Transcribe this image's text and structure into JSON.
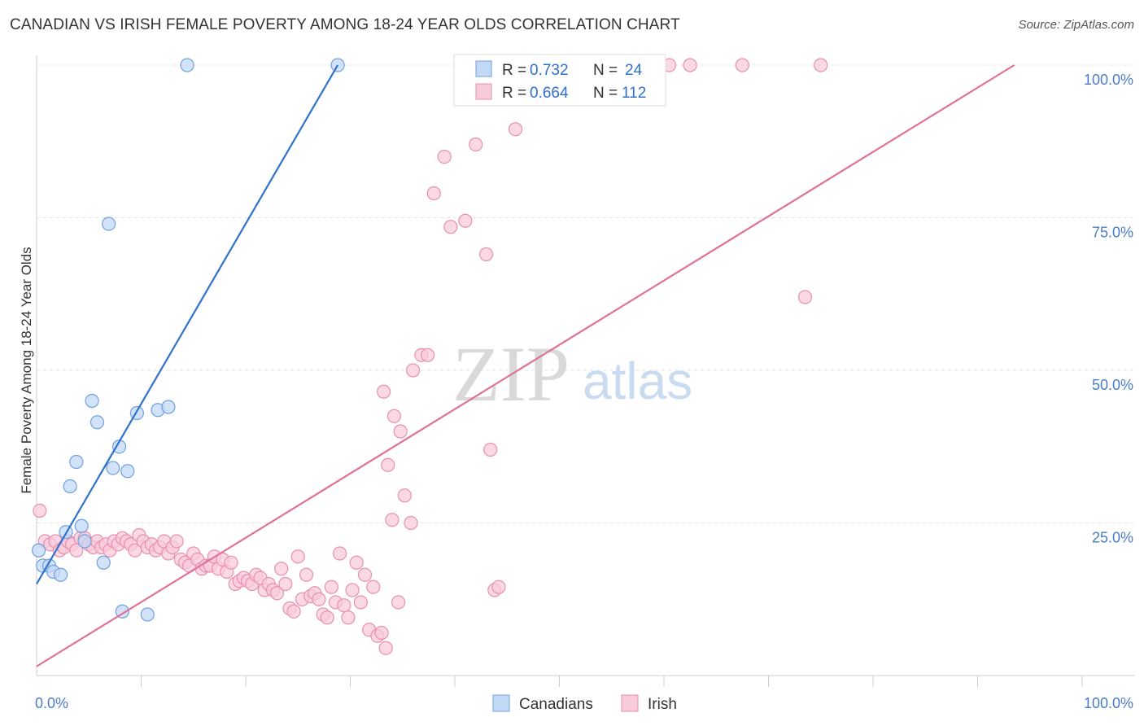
{
  "title": "CANADIAN VS IRISH FEMALE POVERTY AMONG 18-24 YEAR OLDS CORRELATION CHART",
  "source": "Source: ZipAtlas.com",
  "watermark": {
    "zip": "ZIP",
    "atlas": "atlas"
  },
  "legend_box": {
    "rows": [
      {
        "r_label": "R =",
        "r_value": "0.732",
        "n_label": "N =",
        "n_value": "24"
      },
      {
        "r_label": "R =",
        "r_value": "0.664",
        "n_label": "N =",
        "n_value": "112"
      }
    ]
  },
  "bottom_legend": [
    "Canadians",
    "Irish"
  ],
  "chart_data": {
    "type": "scatter",
    "title": "CANADIAN VS IRISH FEMALE POVERTY AMONG 18-24 YEAR OLDS CORRELATION CHART",
    "xlabel": "",
    "ylabel": "Female Poverty Among 18-24 Year Olds",
    "xlim": [
      0,
      100
    ],
    "ylim": [
      0,
      100
    ],
    "x_tick_labels": [
      "0.0%",
      "100.0%"
    ],
    "y_tick_labels": [
      "25.0%",
      "50.0%",
      "75.0%",
      "100.0%"
    ],
    "y_ticks": [
      25,
      50,
      75,
      100
    ],
    "grid": true,
    "legend_position": "top-center",
    "colors": {
      "canadians": "#6fa0e0",
      "canadians_fill": "#c3d8f5",
      "canadians_line": "#2f72cc",
      "irish": "#e98fb0",
      "irish_fill": "#f8cbdb",
      "irish_line": "#e0709a",
      "tick_text": "#4a7cc9"
    },
    "series": [
      {
        "name": "Canadians",
        "points": [
          [
            0.2,
            20.5
          ],
          [
            0.6,
            18.0
          ],
          [
            1.2,
            18.0
          ],
          [
            1.6,
            17.0
          ],
          [
            2.3,
            16.5
          ],
          [
            2.8,
            23.5
          ],
          [
            3.2,
            31.0
          ],
          [
            3.8,
            35.0
          ],
          [
            4.3,
            24.5
          ],
          [
            4.6,
            22.0
          ],
          [
            5.3,
            45.0
          ],
          [
            5.8,
            41.5
          ],
          [
            6.4,
            18.5
          ],
          [
            6.9,
            74.0
          ],
          [
            7.3,
            34.0
          ],
          [
            7.9,
            37.5
          ],
          [
            8.2,
            10.5
          ],
          [
            8.7,
            33.5
          ],
          [
            9.6,
            43.0
          ],
          [
            10.6,
            10.0
          ],
          [
            11.6,
            43.5
          ],
          [
            12.6,
            44.0
          ],
          [
            14.4,
            100.0
          ],
          [
            28.8,
            100.0
          ]
        ],
        "trend": [
          [
            0,
            15.0
          ],
          [
            28.8,
            100.0
          ]
        ]
      },
      {
        "name": "Irish",
        "points": [
          [
            0.3,
            27.0
          ],
          [
            0.8,
            22.0
          ],
          [
            1.3,
            21.5
          ],
          [
            1.8,
            22.0
          ],
          [
            2.2,
            20.5
          ],
          [
            2.6,
            21.0
          ],
          [
            3.0,
            22.0
          ],
          [
            3.4,
            21.5
          ],
          [
            3.8,
            20.5
          ],
          [
            4.2,
            22.5
          ],
          [
            4.6,
            22.5
          ],
          [
            5.0,
            21.5
          ],
          [
            5.4,
            21.0
          ],
          [
            5.8,
            22.0
          ],
          [
            6.2,
            21.0
          ],
          [
            6.6,
            21.5
          ],
          [
            7.0,
            20.5
          ],
          [
            7.4,
            22.0
          ],
          [
            7.8,
            21.5
          ],
          [
            8.2,
            22.5
          ],
          [
            8.6,
            22.0
          ],
          [
            9.0,
            21.5
          ],
          [
            9.4,
            20.5
          ],
          [
            9.8,
            23.0
          ],
          [
            10.2,
            22.0
          ],
          [
            10.6,
            21.0
          ],
          [
            11.0,
            21.5
          ],
          [
            11.4,
            20.5
          ],
          [
            11.8,
            21.0
          ],
          [
            12.2,
            22.0
          ],
          [
            12.6,
            20.0
          ],
          [
            13.0,
            21.0
          ],
          [
            13.4,
            22.0
          ],
          [
            13.8,
            19.0
          ],
          [
            14.2,
            18.5
          ],
          [
            14.6,
            18.0
          ],
          [
            15.0,
            20.0
          ],
          [
            15.4,
            19.0
          ],
          [
            15.8,
            17.5
          ],
          [
            16.2,
            18.0
          ],
          [
            16.6,
            18.0
          ],
          [
            17.0,
            19.5
          ],
          [
            17.4,
            17.5
          ],
          [
            17.8,
            19.0
          ],
          [
            18.2,
            17.0
          ],
          [
            18.6,
            18.5
          ],
          [
            19.0,
            15.0
          ],
          [
            19.4,
            15.5
          ],
          [
            19.8,
            16.0
          ],
          [
            20.2,
            15.5
          ],
          [
            20.6,
            15.0
          ],
          [
            21.0,
            16.5
          ],
          [
            21.4,
            16.0
          ],
          [
            21.8,
            14.0
          ],
          [
            22.2,
            15.0
          ],
          [
            22.6,
            14.0
          ],
          [
            23.0,
            13.5
          ],
          [
            23.4,
            17.5
          ],
          [
            23.8,
            15.0
          ],
          [
            24.2,
            11.0
          ],
          [
            24.6,
            10.5
          ],
          [
            25.0,
            19.5
          ],
          [
            25.4,
            12.5
          ],
          [
            25.8,
            16.5
          ],
          [
            26.2,
            13.0
          ],
          [
            26.6,
            13.5
          ],
          [
            27.0,
            12.5
          ],
          [
            27.4,
            10.0
          ],
          [
            27.8,
            9.5
          ],
          [
            28.2,
            14.5
          ],
          [
            28.6,
            12.0
          ],
          [
            29.0,
            20.0
          ],
          [
            29.4,
            11.5
          ],
          [
            29.8,
            9.5
          ],
          [
            30.2,
            14.0
          ],
          [
            30.6,
            18.5
          ],
          [
            31.0,
            12.0
          ],
          [
            31.4,
            16.5
          ],
          [
            31.8,
            7.5
          ],
          [
            32.2,
            14.5
          ],
          [
            32.6,
            6.5
          ],
          [
            33.0,
            7.0
          ],
          [
            33.4,
            4.5
          ],
          [
            34.0,
            25.5
          ],
          [
            34.6,
            12.0
          ],
          [
            35.2,
            29.5
          ],
          [
            35.8,
            25.0
          ],
          [
            34.2,
            42.5
          ],
          [
            34.8,
            40.0
          ],
          [
            33.6,
            34.5
          ],
          [
            36.0,
            50.0
          ],
          [
            36.8,
            52.5
          ],
          [
            37.4,
            52.5
          ],
          [
            33.2,
            46.5
          ],
          [
            38.0,
            79.0
          ],
          [
            39.0,
            85.0
          ],
          [
            39.6,
            73.5
          ],
          [
            41.0,
            74.5
          ],
          [
            42.0,
            87.0
          ],
          [
            43.0,
            69.0
          ],
          [
            43.4,
            37.0
          ],
          [
            43.8,
            14.0
          ],
          [
            44.2,
            14.5
          ],
          [
            45.8,
            89.5
          ],
          [
            47.0,
            100.0
          ],
          [
            48.0,
            100.0
          ],
          [
            50.0,
            100.0
          ],
          [
            60.5,
            100.0
          ],
          [
            62.5,
            100.0
          ],
          [
            67.5,
            100.0
          ],
          [
            75.0,
            100.0
          ],
          [
            73.5,
            62.0
          ]
        ],
        "trend": [
          [
            0,
            1.5
          ],
          [
            93.5,
            100.0
          ]
        ]
      }
    ]
  }
}
